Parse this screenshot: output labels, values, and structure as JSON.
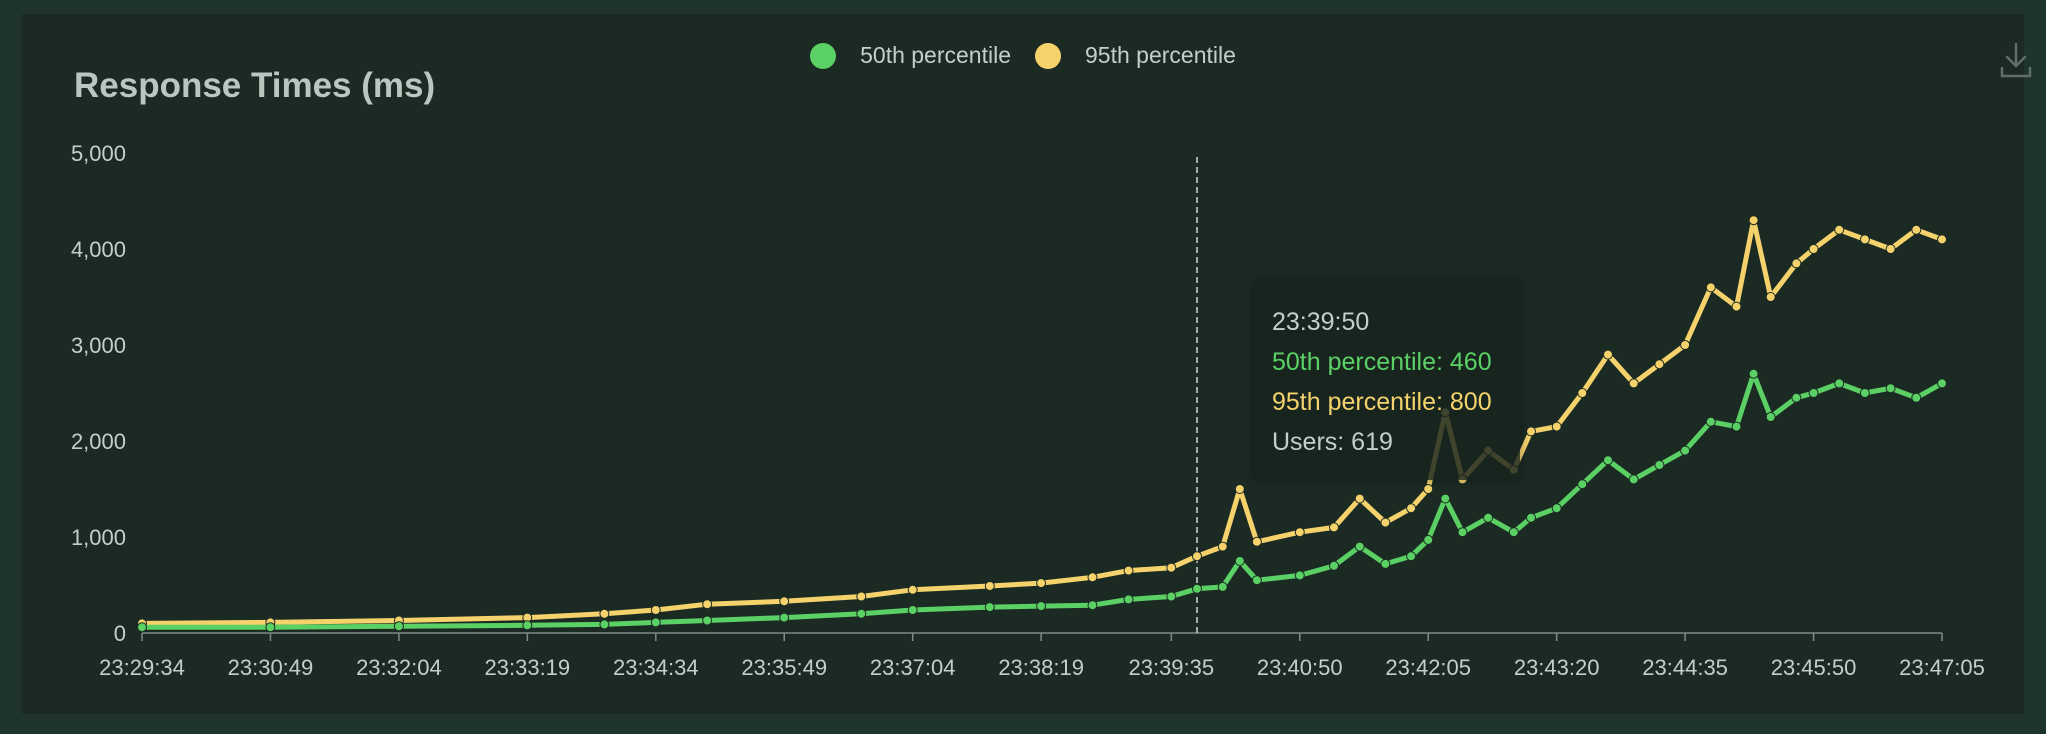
{
  "chart_data": {
    "type": "line",
    "title": "Response Times (ms)",
    "ylim": [
      0,
      5000
    ],
    "yticks": [
      "0",
      "1,000",
      "2,000",
      "3,000",
      "4,000",
      "5,000"
    ],
    "ytick_values": [
      0,
      1000,
      2000,
      3000,
      4000,
      5000
    ],
    "x_start": "23:29:34",
    "x_end": "23:47:05",
    "xticks": [
      "23:29:34",
      "23:30:49",
      "23:32:04",
      "23:33:19",
      "23:34:34",
      "23:35:49",
      "23:37:04",
      "23:38:19",
      "23:39:35",
      "23:40:50",
      "23:42:05",
      "23:43:20",
      "23:44:35",
      "23:45:50",
      "23:47:05"
    ],
    "legend_position": "top-center",
    "grid": false,
    "series": [
      {
        "name": "50th percentile",
        "color": "#5bd064",
        "points": [
          [
            "23:29:34",
            60
          ],
          [
            "23:30:49",
            60
          ],
          [
            "23:32:04",
            70
          ],
          [
            "23:33:19",
            80
          ],
          [
            "23:34:04",
            90
          ],
          [
            "23:34:34",
            110
          ],
          [
            "23:35:04",
            130
          ],
          [
            "23:35:49",
            160
          ],
          [
            "23:36:34",
            200
          ],
          [
            "23:37:04",
            240
          ],
          [
            "23:37:49",
            270
          ],
          [
            "23:38:19",
            280
          ],
          [
            "23:38:49",
            290
          ],
          [
            "23:39:10",
            350
          ],
          [
            "23:39:35",
            380
          ],
          [
            "23:39:50",
            460
          ],
          [
            "23:40:05",
            480
          ],
          [
            "23:40:15",
            750
          ],
          [
            "23:40:25",
            550
          ],
          [
            "23:40:50",
            600
          ],
          [
            "23:41:10",
            700
          ],
          [
            "23:41:25",
            900
          ],
          [
            "23:41:40",
            720
          ],
          [
            "23:41:55",
            800
          ],
          [
            "23:42:05",
            970
          ],
          [
            "23:42:15",
            1400
          ],
          [
            "23:42:25",
            1050
          ],
          [
            "23:42:40",
            1200
          ],
          [
            "23:42:55",
            1050
          ],
          [
            "23:43:05",
            1200
          ],
          [
            "23:43:20",
            1300
          ],
          [
            "23:43:35",
            1550
          ],
          [
            "23:43:50",
            1800
          ],
          [
            "23:44:05",
            1600
          ],
          [
            "23:44:20",
            1750
          ],
          [
            "23:44:35",
            1900
          ],
          [
            "23:44:50",
            2200
          ],
          [
            "23:45:05",
            2150
          ],
          [
            "23:45:15",
            2700
          ],
          [
            "23:45:25",
            2250
          ],
          [
            "23:45:40",
            2450
          ],
          [
            "23:45:50",
            2500
          ],
          [
            "23:46:05",
            2600
          ],
          [
            "23:46:20",
            2500
          ],
          [
            "23:46:35",
            2550
          ],
          [
            "23:46:50",
            2450
          ],
          [
            "23:47:05",
            2600
          ]
        ]
      },
      {
        "name": "95th percentile",
        "color": "#f5d26c",
        "points": [
          [
            "23:29:34",
            100
          ],
          [
            "23:30:49",
            110
          ],
          [
            "23:32:04",
            130
          ],
          [
            "23:33:19",
            160
          ],
          [
            "23:34:04",
            200
          ],
          [
            "23:34:34",
            240
          ],
          [
            "23:35:04",
            300
          ],
          [
            "23:35:49",
            330
          ],
          [
            "23:36:34",
            380
          ],
          [
            "23:37:04",
            450
          ],
          [
            "23:37:49",
            490
          ],
          [
            "23:38:19",
            520
          ],
          [
            "23:38:49",
            580
          ],
          [
            "23:39:10",
            650
          ],
          [
            "23:39:35",
            680
          ],
          [
            "23:39:50",
            800
          ],
          [
            "23:40:05",
            900
          ],
          [
            "23:40:15",
            1500
          ],
          [
            "23:40:25",
            950
          ],
          [
            "23:40:50",
            1050
          ],
          [
            "23:41:10",
            1100
          ],
          [
            "23:41:25",
            1400
          ],
          [
            "23:41:40",
            1150
          ],
          [
            "23:41:55",
            1300
          ],
          [
            "23:42:05",
            1500
          ],
          [
            "23:42:15",
            2300
          ],
          [
            "23:42:25",
            1600
          ],
          [
            "23:42:40",
            1900
          ],
          [
            "23:42:55",
            1700
          ],
          [
            "23:43:05",
            2100
          ],
          [
            "23:43:20",
            2150
          ],
          [
            "23:43:35",
            2500
          ],
          [
            "23:43:50",
            2900
          ],
          [
            "23:44:05",
            2600
          ],
          [
            "23:44:20",
            2800
          ],
          [
            "23:44:35",
            3000
          ],
          [
            "23:44:50",
            3600
          ],
          [
            "23:45:05",
            3400
          ],
          [
            "23:45:15",
            4300
          ],
          [
            "23:45:25",
            3500
          ],
          [
            "23:45:40",
            3850
          ],
          [
            "23:45:50",
            4000
          ],
          [
            "23:46:05",
            4200
          ],
          [
            "23:46:20",
            4100
          ],
          [
            "23:46:35",
            4000
          ],
          [
            "23:46:50",
            4200
          ],
          [
            "23:47:05",
            4100
          ]
        ]
      }
    ],
    "hover": {
      "time": "23:39:50",
      "line_50": "50th percentile: 460",
      "line_95": "95th percentile: 800",
      "users": "Users: 619"
    }
  },
  "colors": {
    "panel_bg": "#1b2a23",
    "page_bg": "#1e342c",
    "axis": "#c5cfca",
    "tooltip_50": "#5bd064",
    "tooltip_95": "#f5d26c",
    "tooltip_text": "#c5cfca"
  },
  "icons": {
    "download": "download-icon"
  }
}
